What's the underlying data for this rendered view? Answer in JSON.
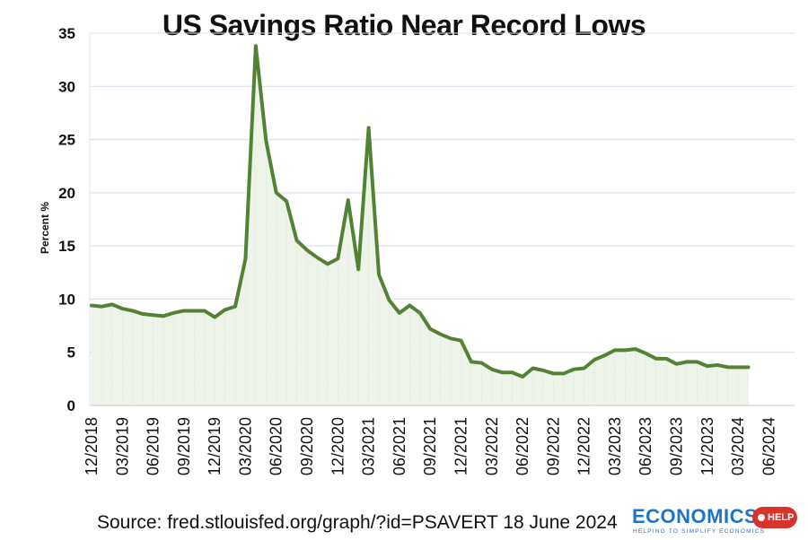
{
  "chart_data": {
    "type": "area",
    "title": "US Savings Ratio Near Record Lows",
    "ylabel": "Percent %",
    "xlabel": "",
    "ylim": [
      0,
      35
    ],
    "yticks": [
      0,
      5,
      10,
      15,
      20,
      25,
      30,
      35
    ],
    "grid": true,
    "x_start": "12/2018",
    "x_tick_labels": [
      "12/2018",
      "03/2019",
      "06/2019",
      "09/2019",
      "12/2019",
      "03/2020",
      "06/2020",
      "09/2020",
      "12/2020",
      "03/2021",
      "06/2021",
      "09/2021",
      "12/2021",
      "03/2022",
      "06/2022",
      "09/2022",
      "12/2022",
      "03/2023",
      "06/2023",
      "09/2023",
      "12/2023",
      "03/2024",
      "06/2024"
    ],
    "series": [
      {
        "color": "#548235",
        "values": [
          9.4,
          9.3,
          9.5,
          9.1,
          8.9,
          8.6,
          8.5,
          8.4,
          8.7,
          8.9,
          8.9,
          8.9,
          8.3,
          9.0,
          9.3,
          13.8,
          33.8,
          24.9,
          20.0,
          19.2,
          15.5,
          14.6,
          13.9,
          13.3,
          13.8,
          19.3,
          12.8,
          26.1,
          12.3,
          9.9,
          8.7,
          9.4,
          8.7,
          7.2,
          6.7,
          6.3,
          6.1,
          4.1,
          4.0,
          3.4,
          3.1,
          3.1,
          2.7,
          3.5,
          3.3,
          3.0,
          3.0,
          3.4,
          3.5,
          4.3,
          4.7,
          5.2,
          5.2,
          5.3,
          4.9,
          4.4,
          4.4,
          3.9,
          4.1,
          4.1,
          3.7,
          3.8,
          3.6,
          3.6,
          3.6
        ]
      }
    ]
  },
  "source": "Source: fred.stlouisfed.org/graph/?id=PSAVERT 18 June 2024",
  "logo": {
    "word": "ECONOMICS",
    "tag": "HELP",
    "tagline": "HELPING TO SIMPLIFY ECONOMICS"
  },
  "colors": {
    "line": "#548235",
    "fill": "#eef4ea",
    "grid": "#d9dcf0",
    "logo_blue": "#1f74c9",
    "logo_red": "#d9342b"
  }
}
